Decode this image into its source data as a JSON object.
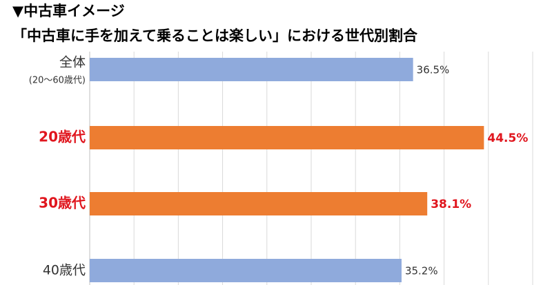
{
  "chart_data": {
    "type": "hbar",
    "title": "▼中古車イメージ",
    "subtitle": "「中古車に手を加えて乗ることは楽しい」における世代別割合",
    "categories": [
      "全体",
      "20歳代",
      "30歳代",
      "40歳代"
    ],
    "category_sublabels": [
      "(20～60歳代)",
      null,
      null,
      null
    ],
    "values": [
      36.5,
      44.5,
      38.1,
      35.2
    ],
    "value_labels": [
      "36.5%",
      "44.5%",
      "38.1%",
      "35.2%"
    ],
    "colors": [
      "#8faadc",
      "#ed7d31",
      "#ed7d31",
      "#8faadc"
    ],
    "highlight": [
      false,
      true,
      true,
      false
    ],
    "highlight_color": "#e0161e",
    "xlim": [
      0,
      50
    ],
    "xticks": [
      0,
      5,
      10,
      15,
      20,
      25,
      30,
      35,
      40,
      45,
      50
    ],
    "grid": true
  }
}
